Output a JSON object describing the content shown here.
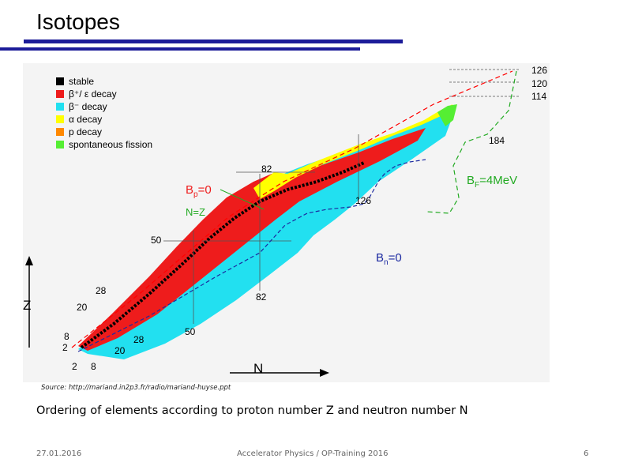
{
  "slide": {
    "title": "Isotopes",
    "source": "Source: http://mariand.in2p3.fr/radio/mariand-huyse.ppt",
    "caption": "Ordering of elements according to proton number Z and neutron number N",
    "footer": {
      "date": "27.01.2016",
      "center": "Accelerator Physics / OP-Training 2016",
      "page": "6"
    }
  },
  "chart": {
    "legend": [
      {
        "label": "stable",
        "color": "#000000"
      },
      {
        "label": "β⁺/ ε decay",
        "color": "#ee1c1c"
      },
      {
        "label": "β⁻ decay",
        "color": "#22e0f0"
      },
      {
        "label": "α decay",
        "color": "#ffff00"
      },
      {
        "label": "p decay",
        "color": "#ff8800"
      },
      {
        "label": "spontaneous fission",
        "color": "#55ee33"
      }
    ],
    "z_axis_label": "Z",
    "n_axis_label": "N",
    "magic_labels": {
      "n2": "2",
      "n8": "8",
      "n20": "20",
      "n28": "28",
      "n50": "50",
      "n82": "82",
      "n126": "126",
      "n184": "184",
      "z2": "2",
      "z8": "8",
      "z20": "20",
      "z28": "28",
      "z50": "50",
      "z82": "82",
      "z114": "114",
      "z120": "120",
      "z126": "126"
    },
    "line_labels": {
      "bp": "B",
      "bp_sub": "p",
      "bp_val": "=0",
      "nz": "N=Z",
      "bf": "B",
      "bf_sub": "F",
      "bf_val": "=4MeV",
      "bn": "B",
      "bn_sub": "n",
      "bn_val": "=0"
    }
  }
}
